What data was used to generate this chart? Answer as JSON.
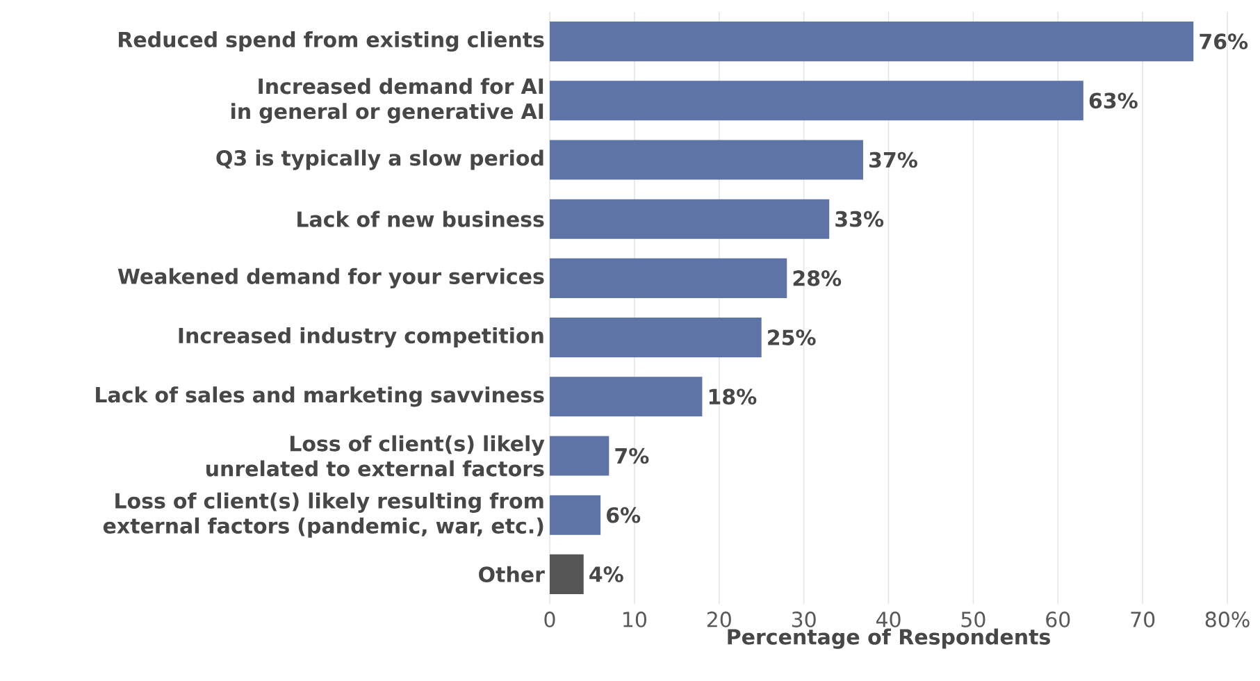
{
  "chart_data": {
    "type": "bar",
    "orientation": "horizontal",
    "categories": [
      "Reduced spend from existing clients",
      "Increased demand for AI in general or generative AI",
      "Q3 is typically a slow period",
      "Lack of new business",
      "Weakened demand for your services",
      "Increased industry competition",
      "Lack of sales and marketing savviness",
      "Loss of client(s) likely unrelated to external factors",
      "Loss of client(s) likely resulting from external factors (pandemic, war, etc.)",
      "Other"
    ],
    "values": [
      76,
      63,
      37,
      33,
      28,
      25,
      18,
      7,
      6,
      4
    ],
    "colors": [
      "#5f74a6",
      "#5f74a6",
      "#5f74a6",
      "#5f74a6",
      "#5f74a6",
      "#5f74a6",
      "#5f74a6",
      "#5f74a6",
      "#5f74a6",
      "#555555"
    ],
    "value_labels": [
      "76%",
      "63%",
      "37%",
      "33%",
      "28%",
      "25%",
      "18%",
      "7%",
      "6%",
      "4%"
    ],
    "xlabel": "Percentage of Respondents",
    "xlim": [
      0,
      80
    ],
    "xticks": [
      0,
      10,
      20,
      30,
      40,
      50,
      60,
      70,
      {
        "value": 80,
        "label": "80%"
      }
    ],
    "grid": "x"
  }
}
